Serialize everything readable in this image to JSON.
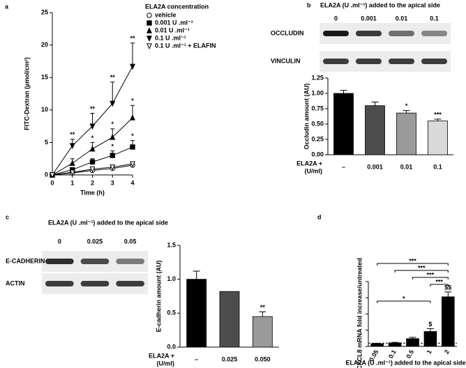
{
  "chart_data": [
    {
      "type": "line",
      "panel": "a",
      "xlabel": "Time (h)",
      "ylabel": "FITC-Dextran (µmol/cm²)",
      "legend_title": "ELA2A concentration",
      "x": [
        0,
        1,
        2,
        3,
        4
      ],
      "xlim": [
        0,
        4
      ],
      "xticks": [
        0,
        1,
        2,
        3,
        4
      ],
      "ylim": [
        0,
        25
      ],
      "yticks": [
        0,
        5,
        10,
        15,
        20,
        25
      ],
      "series": [
        {
          "name": "vehicle",
          "color": "#000000",
          "marker": "circle",
          "filled": false,
          "values": [
            0,
            0.3,
            0.7,
            1.0,
            1.5
          ],
          "errors": [
            0.1,
            0.2,
            0.2,
            0.3,
            0.4
          ],
          "significance": [
            null,
            null,
            null,
            null,
            null
          ]
        },
        {
          "name": "0.001 U .ml⁻¹",
          "color": "#000000",
          "marker": "square",
          "filled": true,
          "values": [
            0,
            0.8,
            2.0,
            3.0,
            4.3
          ],
          "errors": [
            0.1,
            0.3,
            0.5,
            0.7,
            1.0
          ],
          "significance": [
            null,
            null,
            null,
            "*",
            "*"
          ]
        },
        {
          "name": "0.01 U .ml⁻¹",
          "color": "#000000",
          "marker": "triangle",
          "filled": true,
          "values": [
            0,
            1.8,
            4.0,
            5.8,
            8.8
          ],
          "errors": [
            0.1,
            0.7,
            1.0,
            1.3,
            1.9
          ],
          "significance": [
            null,
            null,
            "*",
            "*",
            "*"
          ]
        },
        {
          "name": "0.1 U .ml⁻¹",
          "color": "#000000",
          "marker": "triangle-down",
          "filled": true,
          "values": [
            0,
            4.5,
            7.5,
            11.0,
            16.7
          ],
          "errors": [
            0.1,
            1.0,
            2.0,
            3.3,
            3.6
          ],
          "significance": [
            null,
            "**",
            "**",
            "**",
            "**"
          ]
        },
        {
          "name": "0.1 U .ml⁻¹ + ELAFIN",
          "color": "#000000",
          "marker": "triangle-down",
          "filled": false,
          "values": [
            0,
            0.4,
            0.9,
            1.2,
            1.7
          ],
          "errors": [
            0.1,
            0.2,
            0.2,
            0.3,
            0.3
          ],
          "significance": [
            null,
            null,
            null,
            null,
            null
          ]
        }
      ]
    },
    {
      "type": "bar",
      "panel": "b",
      "ylabel": "Occludin amount (AU)",
      "xlabel_lines": [
        "ELA2A +",
        "(U/ml)"
      ],
      "blot": {
        "header": "ELA2A (U .ml⁻¹) added to the apical side",
        "lanes": [
          "0",
          "0.001",
          "0.01",
          "0.1"
        ],
        "rows": [
          "OCCLUDIN",
          "VINCULIN"
        ]
      },
      "categories": [
        "–",
        "0.001",
        "0.01",
        "0.1"
      ],
      "values": [
        1.0,
        0.8,
        0.68,
        0.55
      ],
      "errors": [
        0.05,
        0.06,
        0.04,
        0.03
      ],
      "colors": [
        "#000000",
        "#4d4d4d",
        "#9a9a9a",
        "#d9d9d9"
      ],
      "significance": [
        null,
        null,
        "*",
        "***"
      ],
      "ylim": [
        0,
        1.25
      ],
      "yticks": [
        {
          "value": 0,
          "label": "0.00"
        },
        {
          "value": 0.25,
          "label": "0.25"
        },
        {
          "value": 0.5,
          "label": "0.50"
        },
        {
          "value": 0.75,
          "label": "0.75"
        },
        {
          "value": 1,
          "label": "1.00"
        },
        {
          "value": 1.25,
          "label": "1.25"
        }
      ],
      "tick_labels": true
    },
    {
      "type": "bar",
      "panel": "c",
      "ylabel": "E-cadherin amount (AU)",
      "xlabel_lines": [
        "ELA2A +",
        "(U/ml)"
      ],
      "blot": {
        "header": "ELA2A (U .ml⁻¹) added to the apical side",
        "lanes": [
          "0",
          "0.025",
          "0.05"
        ],
        "rows": [
          "E-CADHERIN",
          "ACTIN"
        ]
      },
      "categories": [
        "–",
        "0.025",
        "0.050"
      ],
      "values": [
        1.0,
        0.82,
        0.45
      ],
      "errors": [
        0.12,
        0,
        0.07
      ],
      "colors": [
        "#000000",
        "#4d4d4d",
        "#9a9a9a"
      ],
      "significance": [
        null,
        null,
        "**"
      ],
      "ylim": [
        0,
        1.5
      ],
      "yticks": [
        {
          "value": 0,
          "label": "0.0"
        },
        {
          "value": 0.5,
          "label": "0.5"
        },
        {
          "value": 1,
          "label": "1.0"
        },
        {
          "value": 1.5,
          "label": "1.5"
        }
      ],
      "tick_labels": true
    },
    {
      "type": "bar",
      "panel": "d",
      "ylabel": "CXCL8 mRNA fold increase/untreated",
      "xlabel": "ELA2A (U .ml⁻¹) added to the apical side",
      "categories": [
        "0.05",
        "0.1",
        "0.5",
        "1",
        "2"
      ],
      "values": [
        0.8,
        1.1,
        2.4,
        4.6,
        15.3
      ],
      "errors": [
        0.15,
        0.15,
        0.4,
        0.9,
        1.5
      ],
      "colors": [
        "#000000",
        "#000000",
        "#000000",
        "#000000",
        "#000000"
      ],
      "significance": [
        null,
        null,
        null,
        "$",
        "$$"
      ],
      "reference_line": 1,
      "rotate_labels": true,
      "comparisons": [
        {
          "from": 0,
          "to": 4,
          "label": "***"
        },
        {
          "from": 1,
          "to": 4,
          "label": "***"
        },
        {
          "from": 2,
          "to": 4,
          "label": "***"
        },
        {
          "from": 3,
          "to": 4,
          "label": "***"
        },
        {
          "from": 0,
          "to": 3,
          "label": "*"
        }
      ],
      "ylim": [
        0,
        20
      ],
      "yticks": [
        0,
        5,
        10,
        15,
        20
      ],
      "tick_labels": false
    }
  ]
}
